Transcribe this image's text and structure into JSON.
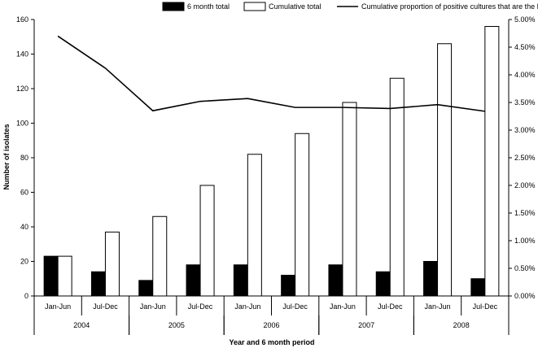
{
  "chart_data": {
    "type": "bar",
    "categories": [
      "Jan-Jun",
      "Jul-Dec",
      "Jan-Jun",
      "Jul-Dec",
      "Jan-Jun",
      "Jul-Dec",
      "Jan-Jun",
      "Jul-Dec",
      "Jan-Jun",
      "Jul-Dec"
    ],
    "groups": [
      {
        "label": "2004",
        "span": [
          0,
          1
        ]
      },
      {
        "label": "2005",
        "span": [
          2,
          3
        ]
      },
      {
        "label": "2006",
        "span": [
          4,
          5
        ]
      },
      {
        "label": "2007",
        "span": [
          6,
          7
        ]
      },
      {
        "label": "2008",
        "span": [
          8,
          9
        ]
      }
    ],
    "series": [
      {
        "name": "6 month total",
        "kind": "bar",
        "axis": "left",
        "color": "#000000",
        "values": [
          23,
          14,
          9,
          18,
          18,
          12,
          18,
          14,
          20,
          10
        ]
      },
      {
        "name": "Cumulative total",
        "kind": "bar",
        "axis": "left",
        "color": "#ffffff",
        "values": [
          23,
          37,
          46,
          64,
          82,
          94,
          112,
          126,
          146,
          156
        ]
      },
      {
        "name": "Cumulative proportion of positive cultures that are the Mercian strain",
        "kind": "line",
        "axis": "right",
        "color": "#000000",
        "values": [
          4.7,
          4.12,
          3.35,
          3.52,
          3.57,
          3.41,
          3.41,
          3.39,
          3.46,
          3.34
        ]
      }
    ],
    "xlabel": "Year and 6 month period",
    "ylabel": "Number of isolates",
    "ylim": [
      0,
      160
    ],
    "yticks": [
      "0",
      "20",
      "40",
      "60",
      "80",
      "100",
      "120",
      "140",
      "160"
    ],
    "y2lim": [
      0,
      5
    ],
    "y2ticks": [
      "0.00%",
      "0.50%",
      "1.00%",
      "1.50%",
      "2.00%",
      "2.50%",
      "3.00%",
      "3.50%",
      "4.00%",
      "4.50%",
      "5.00%"
    ],
    "legend": "top",
    "grid": false
  }
}
